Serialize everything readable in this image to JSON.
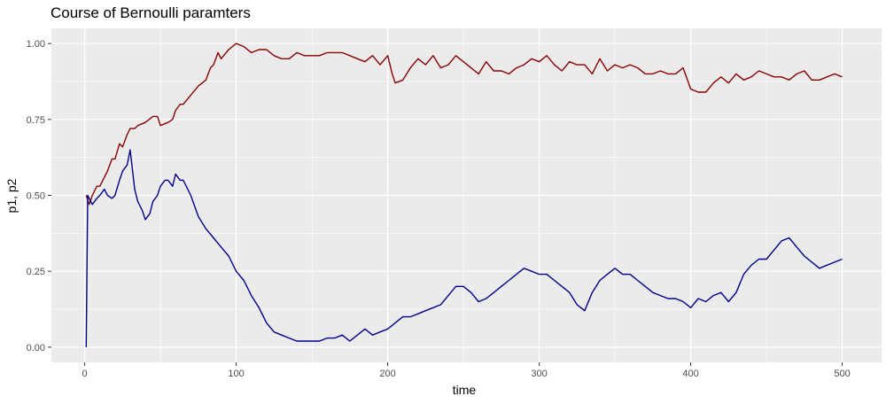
{
  "chart_data": {
    "type": "line",
    "title": "Course of Bernoulli paramters",
    "xlabel": "time",
    "ylabel": "p1, p2",
    "xlim": [
      -22,
      526
    ],
    "ylim": [
      -0.05,
      1.05
    ],
    "x_ticks": [
      0,
      100,
      200,
      300,
      400,
      500
    ],
    "x_tick_labels": [
      "0",
      "100",
      "200",
      "300",
      "400",
      "500"
    ],
    "y_ticks": [
      0,
      0.25,
      0.5,
      0.75,
      1
    ],
    "y_tick_labels": [
      "0.00",
      "0.25",
      "0.50",
      "0.75",
      "1.00"
    ],
    "grid": true,
    "legend": "none",
    "background_color": "#ebebeb",
    "grid_color": "#ffffff",
    "series": [
      {
        "color": "#8b0000",
        "x": [
          1,
          3,
          5,
          8,
          10,
          12,
          15,
          18,
          20,
          23,
          25,
          28,
          30,
          33,
          35,
          40,
          45,
          48,
          50,
          55,
          58,
          60,
          63,
          65,
          70,
          75,
          80,
          83,
          85,
          88,
          90,
          95,
          100,
          105,
          110,
          115,
          120,
          125,
          130,
          135,
          140,
          145,
          150,
          155,
          160,
          165,
          170,
          175,
          180,
          185,
          190,
          195,
          200,
          203,
          205,
          210,
          215,
          220,
          225,
          230,
          235,
          240,
          245,
          250,
          255,
          260,
          265,
          270,
          275,
          280,
          285,
          290,
          295,
          300,
          305,
          310,
          315,
          320,
          325,
          330,
          335,
          340,
          345,
          350,
          355,
          360,
          365,
          370,
          375,
          380,
          385,
          390,
          395,
          400,
          405,
          410,
          415,
          420,
          425,
          430,
          435,
          440,
          445,
          450,
          455,
          460,
          465,
          470,
          475,
          480,
          485,
          490,
          495,
          500
        ],
        "y": [
          0.5,
          0.47,
          0.5,
          0.53,
          0.53,
          0.55,
          0.58,
          0.62,
          0.62,
          0.67,
          0.66,
          0.7,
          0.72,
          0.72,
          0.73,
          0.74,
          0.76,
          0.76,
          0.73,
          0.74,
          0.75,
          0.78,
          0.8,
          0.8,
          0.83,
          0.86,
          0.88,
          0.92,
          0.93,
          0.97,
          0.95,
          0.98,
          1.0,
          0.99,
          0.97,
          0.98,
          0.98,
          0.96,
          0.95,
          0.95,
          0.97,
          0.96,
          0.96,
          0.96,
          0.97,
          0.97,
          0.97,
          0.96,
          0.95,
          0.94,
          0.96,
          0.93,
          0.96,
          0.9,
          0.87,
          0.88,
          0.92,
          0.95,
          0.93,
          0.96,
          0.92,
          0.93,
          0.96,
          0.94,
          0.92,
          0.9,
          0.94,
          0.91,
          0.91,
          0.9,
          0.92,
          0.93,
          0.95,
          0.94,
          0.96,
          0.93,
          0.91,
          0.94,
          0.93,
          0.93,
          0.9,
          0.95,
          0.91,
          0.93,
          0.92,
          0.93,
          0.92,
          0.9,
          0.9,
          0.91,
          0.9,
          0.9,
          0.92,
          0.85,
          0.84,
          0.84,
          0.87,
          0.89,
          0.87,
          0.9,
          0.88,
          0.89,
          0.91,
          0.9,
          0.89,
          0.89,
          0.88,
          0.9,
          0.91,
          0.88,
          0.88,
          0.89,
          0.9,
          0.89
        ]
      },
      {
        "color": "#00008b",
        "x": [
          1,
          2,
          3,
          5,
          8,
          10,
          13,
          15,
          18,
          20,
          23,
          25,
          28,
          30,
          33,
          35,
          38,
          40,
          43,
          45,
          48,
          50,
          53,
          55,
          58,
          60,
          63,
          65,
          68,
          70,
          75,
          80,
          85,
          90,
          95,
          100,
          105,
          110,
          115,
          120,
          125,
          130,
          135,
          140,
          145,
          150,
          155,
          160,
          165,
          170,
          175,
          180,
          185,
          190,
          195,
          200,
          205,
          210,
          215,
          220,
          225,
          230,
          235,
          240,
          245,
          250,
          255,
          260,
          265,
          270,
          275,
          280,
          285,
          290,
          295,
          300,
          305,
          310,
          315,
          320,
          325,
          330,
          335,
          340,
          345,
          350,
          355,
          360,
          365,
          370,
          375,
          380,
          385,
          390,
          395,
          400,
          405,
          410,
          415,
          420,
          425,
          430,
          435,
          440,
          445,
          450,
          455,
          460,
          465,
          470,
          475,
          480,
          485,
          490,
          495,
          500
        ],
        "y": [
          0.0,
          0.5,
          0.49,
          0.47,
          0.49,
          0.5,
          0.52,
          0.5,
          0.49,
          0.5,
          0.55,
          0.58,
          0.6,
          0.65,
          0.52,
          0.48,
          0.45,
          0.42,
          0.44,
          0.48,
          0.5,
          0.53,
          0.55,
          0.55,
          0.53,
          0.57,
          0.55,
          0.55,
          0.52,
          0.5,
          0.43,
          0.39,
          0.36,
          0.33,
          0.3,
          0.25,
          0.22,
          0.17,
          0.13,
          0.08,
          0.05,
          0.04,
          0.03,
          0.02,
          0.02,
          0.02,
          0.02,
          0.03,
          0.03,
          0.04,
          0.02,
          0.04,
          0.06,
          0.04,
          0.05,
          0.06,
          0.08,
          0.1,
          0.1,
          0.11,
          0.12,
          0.13,
          0.14,
          0.17,
          0.2,
          0.2,
          0.18,
          0.15,
          0.16,
          0.18,
          0.2,
          0.22,
          0.24,
          0.26,
          0.25,
          0.24,
          0.24,
          0.22,
          0.2,
          0.18,
          0.14,
          0.12,
          0.18,
          0.22,
          0.24,
          0.26,
          0.24,
          0.24,
          0.22,
          0.2,
          0.18,
          0.17,
          0.16,
          0.16,
          0.15,
          0.13,
          0.16,
          0.15,
          0.17,
          0.18,
          0.15,
          0.18,
          0.24,
          0.27,
          0.29,
          0.29,
          0.32,
          0.35,
          0.36,
          0.33,
          0.3,
          0.28,
          0.26,
          0.27,
          0.28,
          0.29
        ]
      }
    ]
  }
}
